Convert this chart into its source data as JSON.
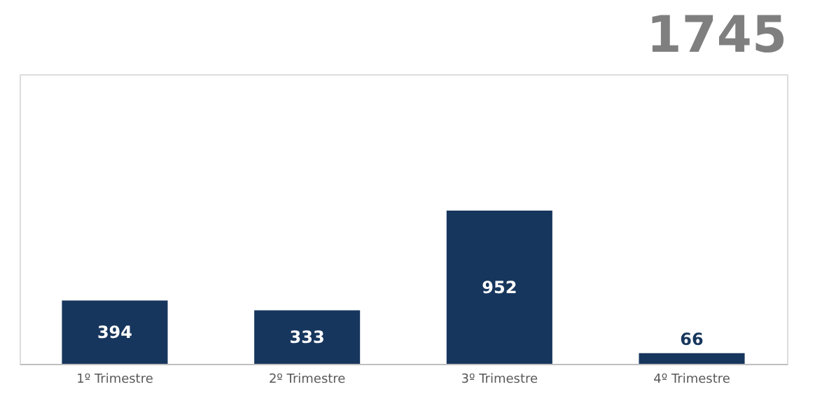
{
  "chart_data": {
    "type": "bar",
    "title": "1745",
    "categories": [
      "1º Trimestre",
      "2º Trimestre",
      "3º Trimestre",
      "4º Trimestre"
    ],
    "values": [
      394,
      333,
      952,
      66
    ],
    "color": "#17365d",
    "ylim": [
      0,
      1800
    ],
    "data_labels": true,
    "grid": false,
    "tick_labels": "x"
  }
}
